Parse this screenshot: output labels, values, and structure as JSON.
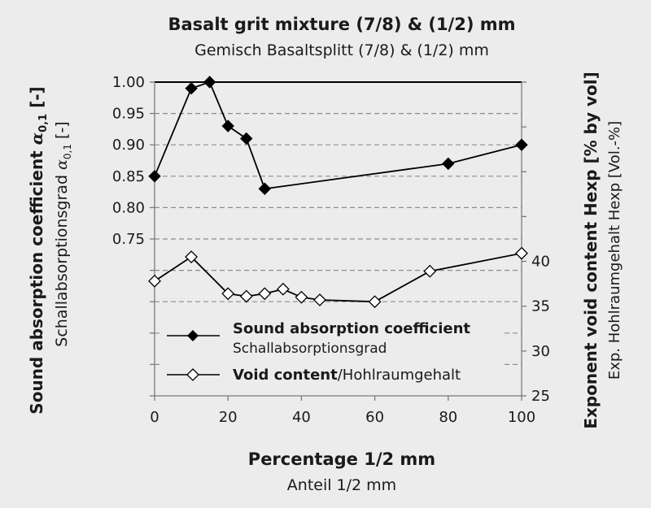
{
  "chart_data": {
    "type": "line",
    "title": "Basalt grit mixture (7/8) & (1/2) mm",
    "subtitle": "Gemisch Basaltsplitt (7/8) & (1/2) mm",
    "xlabel": "Percentage 1/2 mm",
    "xlabel_sub": "Anteil 1/2 mm",
    "ylabel_left_main": "Sound absorption coefficient ",
    "ylabel_left_sub": "Schallabsorptionsgrad ",
    "ylabel_left_symbol": "α",
    "ylabel_left_subscript": "0,1",
    "ylabel_left_unit": " [-]",
    "ylabel_right": "Exponent void content Hexp [% by vol]",
    "ylabel_right_sub": "Exp. Hohlraumgehalt Hexp [Vol.-%]",
    "xlim": [
      0,
      100
    ],
    "xticks": [
      "0",
      "20",
      "40",
      "60",
      "80",
      "100"
    ],
    "ylim_left": [
      0.5,
      1.0
    ],
    "yticks_left": [
      "1.00",
      "0.95",
      "0.90",
      "0.85",
      "0.80",
      "0.75"
    ],
    "ylim_right": [
      25,
      60
    ],
    "yticks_right": [
      "40",
      "35",
      "30",
      "25"
    ],
    "grid": true,
    "legend_position": "lower-center",
    "series": [
      {
        "name": "Sound absorption coefficient",
        "name_sub": "Schallabsorptionsgrad",
        "axis": "left",
        "marker": "filled-diamond",
        "color": "#000000",
        "x": [
          0,
          10,
          15,
          20,
          25,
          30,
          80,
          100
        ],
        "y": [
          0.85,
          0.99,
          1.0,
          0.93,
          0.91,
          0.83,
          0.87,
          0.9
        ]
      },
      {
        "name": "Void content",
        "name_sub": "/Hohlraumgehalt",
        "axis": "right",
        "marker": "open-diamond",
        "color": "#000000",
        "x": [
          0,
          10,
          20,
          25,
          30,
          35,
          40,
          45,
          60,
          75,
          100
        ],
        "y": [
          37.8,
          40.5,
          36.4,
          36.1,
          36.4,
          36.9,
          36.0,
          35.7,
          35.5,
          38.9,
          40.9
        ]
      }
    ]
  }
}
